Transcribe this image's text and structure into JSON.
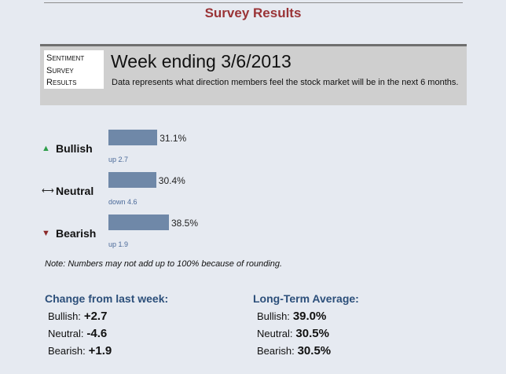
{
  "page": {
    "title": "Survey Results"
  },
  "header": {
    "logo_lines": [
      "Sentiment",
      "Survey",
      "Results"
    ],
    "week_title": "Week ending 3/6/2013",
    "description": "Data represents what direction members feel the stock market will be in the next 6 months."
  },
  "sentiment": [
    {
      "label": "Bullish",
      "icon": "up-triangle-icon",
      "icon_glyph": "▲",
      "icon_color": "#2e9e4a",
      "percent_text": "31.1%",
      "percent": 31.1,
      "change_text": "up 2.7"
    },
    {
      "label": "Neutral",
      "icon": "left-right-arrow-icon",
      "icon_glyph": "⟷",
      "icon_color": "#222222",
      "percent_text": "30.4%",
      "percent": 30.4,
      "change_text": "down 4.6"
    },
    {
      "label": "Bearish",
      "icon": "down-triangle-icon",
      "icon_glyph": "▼",
      "icon_color": "#8b2a2a",
      "percent_text": "38.5%",
      "percent": 38.5,
      "change_text": "up 1.9"
    }
  ],
  "bar_color": "#6f88a8",
  "note": "Note: Numbers may not add up to 100% because of rounding.",
  "change_from_last_week": {
    "heading": "Change from last week:",
    "rows": [
      {
        "label": "Bullish:",
        "value": "+2.7"
      },
      {
        "label": "Neutral:",
        "value": "-4.6"
      },
      {
        "label": "Bearish:",
        "value": "+1.9"
      }
    ]
  },
  "long_term_average": {
    "heading": "Long-Term Average:",
    "rows": [
      {
        "label": "Bullish:",
        "value": "39.0%"
      },
      {
        "label": "Neutral:",
        "value": "30.5%"
      },
      {
        "label": "Bearish:",
        "value": "30.5%"
      }
    ]
  }
}
